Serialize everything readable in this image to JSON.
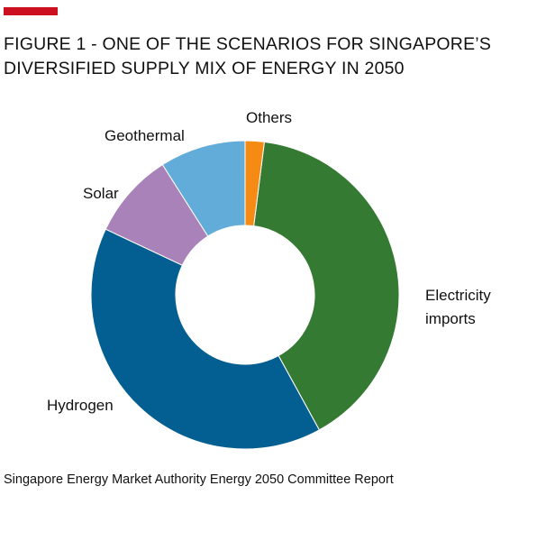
{
  "accent_color": "#cc1020",
  "title_lines": [
    "FIGURE 1 - ONE OF THE SCENARIOS FOR SINGAPORE’S",
    "DIVERSIFIED SUPPLY MIX OF ENERGY IN 2050"
  ],
  "source": "Singapore Energy Market Authority Energy 2050 Committee Report",
  "chart_data": {
    "type": "pie",
    "title": "FIGURE 1 - ONE OF THE SCENARIOS FOR SINGAPORE’S DIVERSIFIED SUPPLY MIX OF ENERGY IN 2050",
    "donut": true,
    "legend": "none",
    "slices": [
      {
        "label": "Electricity imports",
        "value": 40,
        "color": "#357a32"
      },
      {
        "label": "Hydrogen",
        "value": 40,
        "color": "#035f91"
      },
      {
        "label": "Solar",
        "value": 9,
        "color": "#aa82ba"
      },
      {
        "label": "Geothermal",
        "value": 9,
        "color": "#62acd9"
      },
      {
        "label": "Others",
        "value": 2,
        "color": "#f58a14"
      }
    ]
  }
}
